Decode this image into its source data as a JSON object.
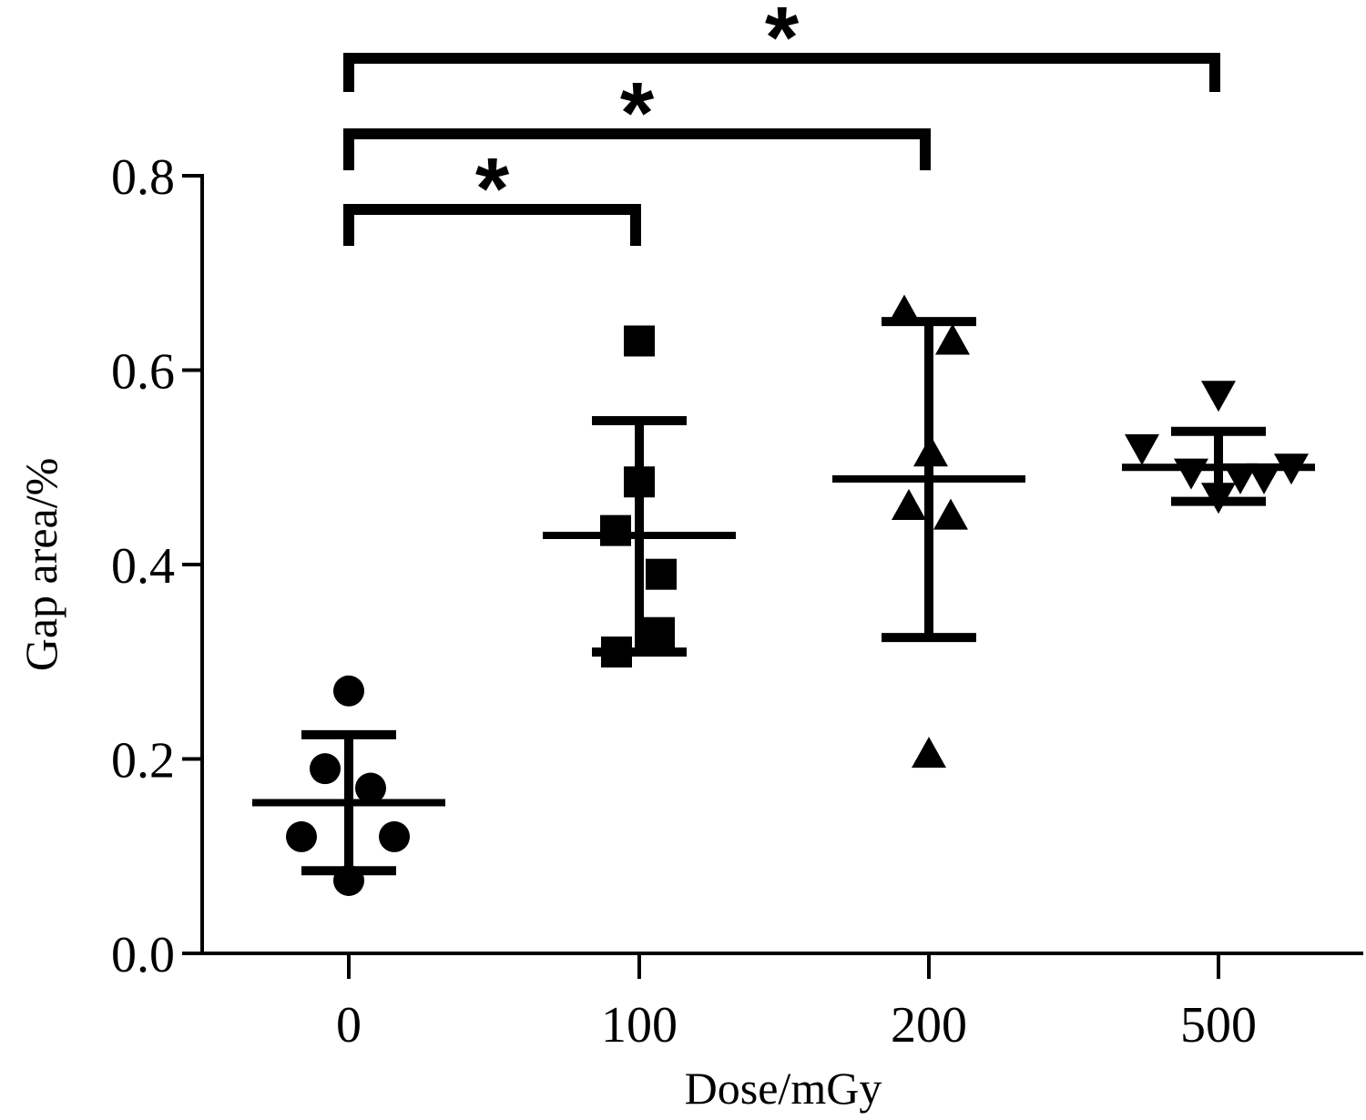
{
  "chart_data": {
    "type": "scatter",
    "xlabel": "Dose/mGy",
    "ylabel": "Gap area/%",
    "ylim": [
      0,
      0.8
    ],
    "y_ticks": [
      "0.0",
      "0.2",
      "0.4",
      "0.6",
      "0.8"
    ],
    "categories": [
      "0",
      "100",
      "200",
      "500"
    ],
    "groups": [
      {
        "category": "0",
        "marker": "circle",
        "points": [
          0.27,
          0.19,
          0.17,
          0.12,
          0.12,
          0.075
        ],
        "mean": 0.155,
        "sd_upper": 0.225,
        "sd_lower": 0.085
      },
      {
        "category": "100",
        "marker": "square",
        "points": [
          0.63,
          0.485,
          0.435,
          0.39,
          0.33,
          0.31
        ],
        "mean": 0.43,
        "sd_upper": 0.548,
        "sd_lower": 0.31
      },
      {
        "category": "200",
        "marker": "triangle-up",
        "points": [
          0.66,
          0.63,
          0.515,
          0.46,
          0.45,
          0.205
        ],
        "mean": 0.488,
        "sd_upper": 0.65,
        "sd_lower": 0.325
      },
      {
        "category": "500",
        "marker": "triangle-down",
        "points": [
          0.575,
          0.52,
          0.5,
          0.495,
          0.49,
          0.49,
          0.47
        ],
        "mean": 0.5,
        "sd_upper": 0.537,
        "sd_lower": 0.465
      }
    ],
    "significance": [
      {
        "from": "0",
        "to": "100",
        "label": "*"
      },
      {
        "from": "0",
        "to": "200",
        "label": "*"
      },
      {
        "from": "0",
        "to": "500",
        "label": "*"
      }
    ],
    "grid": false,
    "color": "#000000"
  }
}
